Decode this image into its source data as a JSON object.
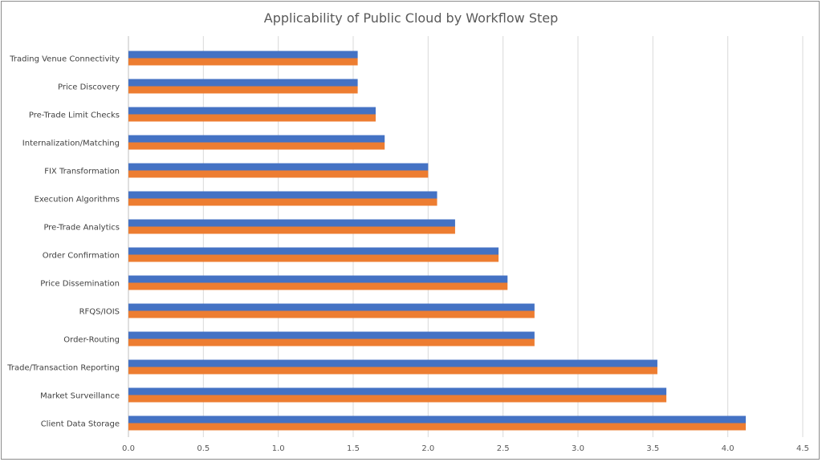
{
  "chart_data": {
    "type": "bar",
    "orientation": "horizontal",
    "title": "Applicability of Public Cloud by Workflow Step",
    "xlabel": "",
    "ylabel": "",
    "xlim": [
      0,
      4.5
    ],
    "x_ticks": [
      "0.0",
      "0.5",
      "1.0",
      "1.5",
      "2.0",
      "2.5",
      "3.0",
      "3.5",
      "4.0",
      "4.5"
    ],
    "grid": "vertical",
    "legend": "none",
    "categories": [
      "Trading Venue Connectivity",
      "Price Discovery",
      "Pre-Trade Limit Checks",
      "Internalization/Matching",
      "FIX Transformation",
      "Execution Algorithms",
      "Pre-Trade Analytics",
      "Order Confirmation",
      "Price Dissemination",
      "RFQS/IOIS",
      "Order-Routing",
      "Trade/Transaction Reporting",
      "Market Surveillance",
      "Client Data Storage"
    ],
    "series": [
      {
        "color": "#4472c4",
        "values": [
          1.53,
          1.53,
          1.65,
          1.71,
          2.0,
          2.06,
          2.18,
          2.47,
          2.53,
          2.71,
          2.71,
          3.53,
          3.59,
          4.12
        ]
      },
      {
        "color": "#ed7d31",
        "values": [
          1.53,
          1.53,
          1.65,
          1.71,
          2.0,
          2.06,
          2.18,
          2.47,
          2.53,
          2.71,
          2.71,
          3.53,
          3.59,
          4.12
        ]
      }
    ]
  }
}
